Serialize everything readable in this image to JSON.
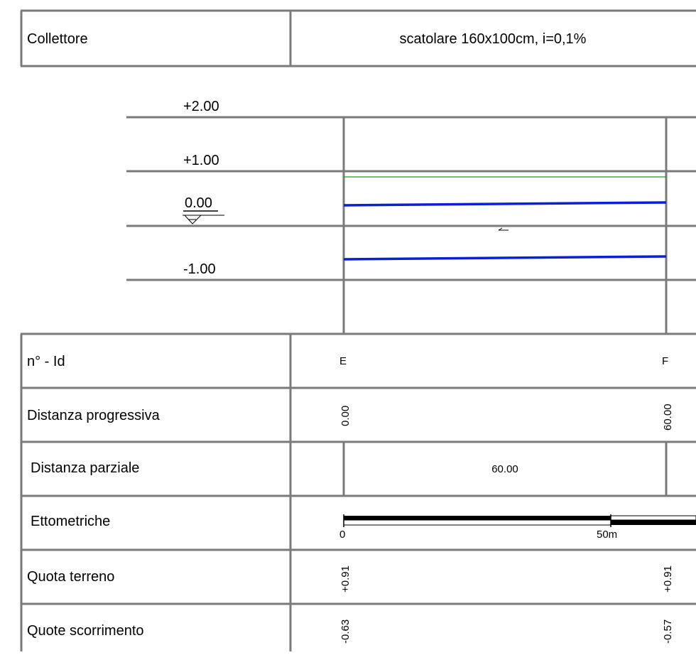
{
  "header": {
    "label": "Collettore",
    "value": "scatolare 160x100cm, i=0,1%"
  },
  "elevation_scale": {
    "levels": [
      "+2.00",
      "+1.00",
      "0.00",
      "-1.00"
    ]
  },
  "profile": {
    "ground_color": "#1a9e1a",
    "pipe_color": "#0a1fd6",
    "flow_arrow": "←"
  },
  "table": {
    "rows": [
      {
        "label": "n° - Id",
        "values": [
          "E",
          "F"
        ]
      },
      {
        "label": "Distanza progressiva",
        "values": [
          "0.00",
          "60.00"
        ]
      },
      {
        "label": "Distanza parziale",
        "values": [
          "60.00"
        ]
      },
      {
        "label": "Ettometriche",
        "values": [
          "0",
          "50m"
        ]
      },
      {
        "label": "Quota terreno",
        "values": [
          "+0.91",
          "+0.91"
        ]
      },
      {
        "label": "Quote scorrimento",
        "values": [
          "-0.63",
          "-0.57"
        ]
      }
    ]
  }
}
